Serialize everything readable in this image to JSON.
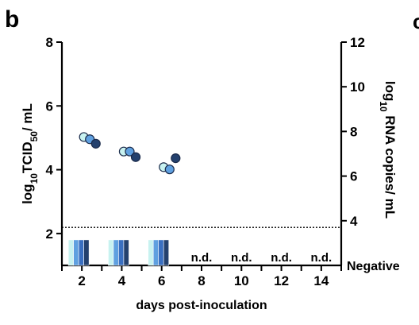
{
  "chart_data": {
    "type": "scatter",
    "panel_label": "b",
    "edge_glyph": "c",
    "xlabel": "days post-inoculation",
    "ylabel": "log10TCID50/ mL",
    "ylabel_parts": {
      "prefix": "log",
      "sub": "10",
      "mid": "TCID",
      "sub2": "50",
      "suffix": "/ mL"
    },
    "y2label": "log10 RNA copies/ mL",
    "y2label_parts": {
      "prefix": "log",
      "sub": "10",
      "suffix": " RNA copies/ mL"
    },
    "x_range": [
      1,
      15
    ],
    "x_ticks": [
      2,
      4,
      6,
      8,
      10,
      12,
      14
    ],
    "x_tick_labels": [
      "2",
      "4",
      "6",
      "8",
      "10",
      "12",
      "14"
    ],
    "ylim": [
      1,
      8
    ],
    "y_ticks": [
      2,
      4,
      6,
      8
    ],
    "y_tick_labels": [
      "2",
      "4",
      "6",
      "8"
    ],
    "y2lim": [
      2,
      12
    ],
    "y2_ticks": [
      4,
      6,
      8,
      10,
      12
    ],
    "y2_tick_labels": [
      "4",
      "6",
      "8",
      "10",
      "12"
    ],
    "y2_extra_label": "Negative",
    "detection_limit_y2": 3.7,
    "grid": false,
    "legend": "none",
    "rna_points": [
      {
        "day": 2.1,
        "y2": 7.75,
        "color": "#c8f2f0"
      },
      {
        "day": 2.4,
        "y2": 7.65,
        "color": "#5fa0e0"
      },
      {
        "day": 2.7,
        "y2": 7.45,
        "color": "#24416e"
      },
      {
        "day": 4.1,
        "y2": 7.1,
        "color": "#c8f2f0"
      },
      {
        "day": 4.4,
        "y2": 7.1,
        "color": "#5fa0e0"
      },
      {
        "day": 4.7,
        "y2": 6.85,
        "color": "#24416e"
      },
      {
        "day": 6.1,
        "y2": 6.4,
        "color": "#c8f2f0"
      },
      {
        "day": 6.4,
        "y2": 6.3,
        "color": "#5fa0e0"
      },
      {
        "day": 6.7,
        "y2": 6.8,
        "color": "#24416e"
      }
    ],
    "bar_groups": [
      {
        "day": 2,
        "bars": [
          {
            "y": 1.8,
            "color": "#c8f2f0"
          },
          {
            "y": 1.8,
            "color": "#5fa0e0"
          },
          {
            "y": 1.8,
            "color": "#3a6fc0"
          },
          {
            "y": 1.8,
            "color": "#24416e"
          }
        ]
      },
      {
        "day": 4,
        "bars": [
          {
            "y": 1.8,
            "color": "#c8f2f0"
          },
          {
            "y": 1.8,
            "color": "#5fa0e0"
          },
          {
            "y": 1.8,
            "color": "#3a6fc0"
          },
          {
            "y": 1.8,
            "color": "#24416e"
          }
        ]
      },
      {
        "day": 6,
        "bars": [
          {
            "y": 1.8,
            "color": "#c8f2f0"
          },
          {
            "y": 1.8,
            "color": "#5fa0e0"
          },
          {
            "y": 1.8,
            "color": "#3a6fc0"
          },
          {
            "y": 1.8,
            "color": "#24416e"
          }
        ]
      }
    ],
    "not_detected": [
      {
        "day": 8,
        "label": "n.d."
      },
      {
        "day": 10,
        "label": "n.d."
      },
      {
        "day": 12,
        "label": "n.d."
      },
      {
        "day": 14,
        "label": "n.d."
      }
    ],
    "colors": {
      "axis": "#000000",
      "edge": "#1a2a4a"
    }
  }
}
